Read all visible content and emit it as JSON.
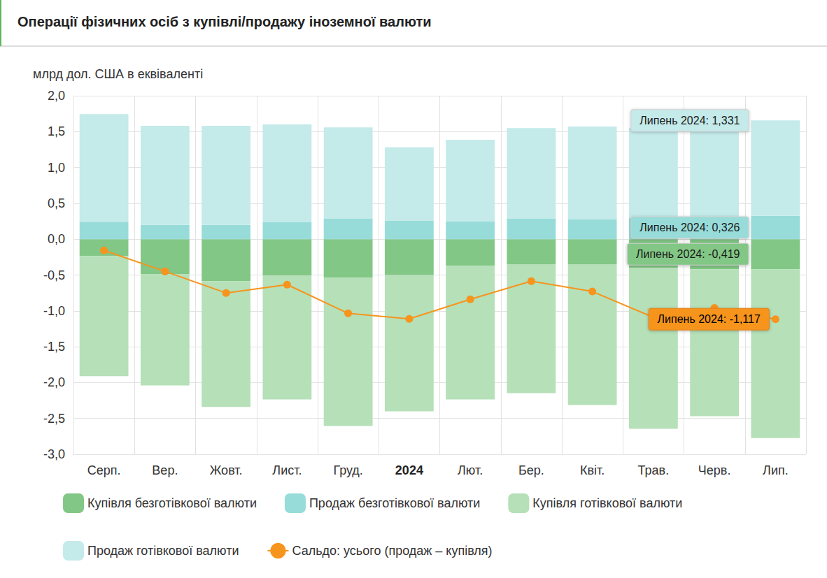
{
  "chart_data": {
    "type": "bar",
    "title": "Операції фізичних осіб з купівлі/продажу іноземної валюти",
    "y_label": "млрд дол. США в еквіваленті",
    "categories": [
      "Серп.",
      "Вер.",
      "Жовт.",
      "Лист.",
      "Груд.",
      "2024",
      "Лют.",
      "Бер.",
      "Квіт.",
      "Трав.",
      "Черв.",
      "Лип."
    ],
    "stacked": true,
    "grid": true,
    "legend": "bottom",
    "series": [
      {
        "name": "Купівля безготівкової валюти",
        "type": "bar",
        "color": "#82c785",
        "values": [
          -0.234,
          -0.49,
          -0.585,
          -0.51,
          -0.54,
          -0.5,
          -0.37,
          -0.35,
          -0.35,
          -0.4,
          -0.42,
          -0.419
        ]
      },
      {
        "name": "Продаж безготівкової валюти",
        "type": "bar",
        "color": "#97dcd9",
        "values": [
          0.244,
          0.2,
          0.2,
          0.24,
          0.29,
          0.26,
          0.25,
          0.29,
          0.28,
          0.3,
          0.31,
          0.326
        ]
      },
      {
        "name": "Купівля готівкової валюти",
        "type": "bar",
        "color": "#b5e0b8",
        "values": [
          -1.676,
          -1.55,
          -1.755,
          -1.724,
          -2.065,
          -1.9,
          -1.864,
          -1.796,
          -1.962,
          -2.244,
          -2.048,
          -2.355
        ]
      },
      {
        "name": "Продаж готівкової валюти",
        "type": "bar",
        "color": "#c4eaea",
        "values": [
          1.5,
          1.38,
          1.38,
          1.36,
          1.27,
          1.02,
          1.135,
          1.26,
          1.29,
          1.25,
          1.2,
          1.331
        ]
      },
      {
        "name": "Сальдо: усього (продаж – купівля)",
        "type": "line",
        "color": "#f7941d",
        "marker": "circle",
        "values": [
          -0.156,
          -0.45,
          -0.75,
          -0.634,
          -1.034,
          -1.112,
          -0.839,
          -0.585,
          -0.73,
          -1.09,
          -0.958,
          -1.117
        ]
      }
    ],
    "annotations": [
      {
        "series": "Продаж готівкової валюти",
        "category": "Лип.",
        "text": "Липень 2024: 1,331"
      },
      {
        "series": "Продаж безготівкової валюти",
        "category": "Лип.",
        "text": "Липень 2024: 0,326"
      },
      {
        "series": "Купівля безготівкової валюти",
        "category": "Лип.",
        "text": "Липень 2024: -0,419"
      },
      {
        "series": "Сальдо: усього (продаж – купівля)",
        "category": "Лип.",
        "text": "Липень 2024: -1,117"
      }
    ],
    "ylim": [
      -3,
      2
    ],
    "yticks": [
      {
        "value": -3,
        "label": "-3,0"
      },
      {
        "value": -2.5,
        "label": "-2,5"
      },
      {
        "value": -2,
        "label": "-2,0"
      },
      {
        "value": -1.5,
        "label": "-1,5"
      },
      {
        "value": -1,
        "label": "-1,0"
      },
      {
        "value": -0.5,
        "label": "-0,5"
      },
      {
        "value": 0,
        "label": "0,0"
      },
      {
        "value": 0.5,
        "label": "0,5"
      },
      {
        "value": 1,
        "label": "1,0"
      },
      {
        "value": 1.5,
        "label": "1,5"
      },
      {
        "value": 2,
        "label": "2,0"
      }
    ]
  }
}
